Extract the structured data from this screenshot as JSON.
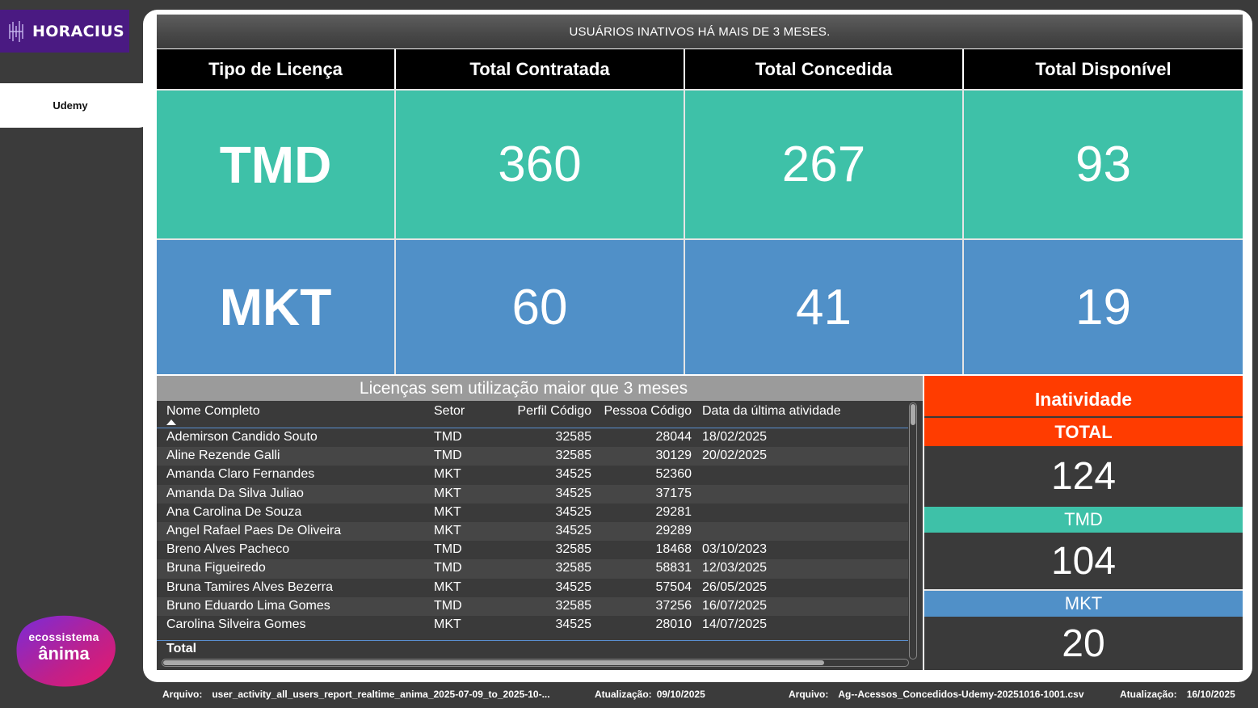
{
  "sidebar": {
    "brand": "HORACIUS",
    "nav_item": "Udemy",
    "footer_logo": {
      "line1": "ecossistema",
      "line2": "ânima"
    }
  },
  "header": {
    "title": "USUÁRIOS INATIVOS HÁ MAIS DE 3 MESES."
  },
  "licenses": {
    "columns": [
      "Tipo de Licença",
      "Total Contratada",
      "Total Concedida",
      "Total Disponível"
    ],
    "rows": [
      {
        "label": "TMD",
        "contratada": "360",
        "concedida": "267",
        "disponivel": "93",
        "color": "#3ec1a8"
      },
      {
        "label": "MKT",
        "contratada": "60",
        "concedida": "41",
        "disponivel": "19",
        "color": "#5090c8"
      }
    ]
  },
  "table": {
    "title": "Licenças sem utilização maior que 3 meses",
    "columns": [
      "Nome Completo",
      "Setor",
      "Perfil Código",
      "Pessoa Código",
      "Data da última atividade"
    ],
    "rows": [
      {
        "nome": "Ademirson Candido Souto",
        "setor": "TMD",
        "perfil": "32585",
        "pessoa": "28044",
        "data": "18/02/2025"
      },
      {
        "nome": "Aline Rezende Galli",
        "setor": "TMD",
        "perfil": "32585",
        "pessoa": "30129",
        "data": "20/02/2025"
      },
      {
        "nome": "Amanda Claro Fernandes",
        "setor": "MKT",
        "perfil": "34525",
        "pessoa": "52360",
        "data": ""
      },
      {
        "nome": "Amanda Da Silva Juliao",
        "setor": "MKT",
        "perfil": "34525",
        "pessoa": "37175",
        "data": ""
      },
      {
        "nome": "Ana Carolina De Souza",
        "setor": "MKT",
        "perfil": "34525",
        "pessoa": "29281",
        "data": ""
      },
      {
        "nome": "Angel Rafael Paes De Oliveira",
        "setor": "MKT",
        "perfil": "34525",
        "pessoa": "29289",
        "data": ""
      },
      {
        "nome": "Breno Alves Pacheco",
        "setor": "TMD",
        "perfil": "32585",
        "pessoa": "18468",
        "data": "03/10/2023"
      },
      {
        "nome": "Bruna Figueiredo",
        "setor": "TMD",
        "perfil": "32585",
        "pessoa": "58831",
        "data": "12/03/2025"
      },
      {
        "nome": "Bruna Tamires Alves Bezerra",
        "setor": "MKT",
        "perfil": "34525",
        "pessoa": "57504",
        "data": "26/05/2025"
      },
      {
        "nome": "Bruno Eduardo Lima Gomes",
        "setor": "TMD",
        "perfil": "32585",
        "pessoa": "37256",
        "data": "16/07/2025"
      },
      {
        "nome": "Carolina Silveira Gomes",
        "setor": "MKT",
        "perfil": "34525",
        "pessoa": "28010",
        "data": "14/07/2025"
      }
    ],
    "total_label": "Total"
  },
  "inatividade": {
    "title": "Inatividade",
    "total_label": "TOTAL",
    "total_value": "124",
    "tmd_label": "TMD",
    "tmd_value": "104",
    "mkt_label": "MKT",
    "mkt_value": "20",
    "title_color": "#ff3c00"
  },
  "footer": {
    "arquivo1_label": "Arquivo:",
    "arquivo1_value": "user_activity_all_users_report_realtime_anima_2025-07-09_to_2025-10-...",
    "atualizacao1_label": "Atualização:",
    "atualizacao1_value": "09/10/2025",
    "arquivo2_label": "Arquivo:",
    "arquivo2_value": "Ag--Acessos_Concedidos-Udemy-20251016-1001.csv",
    "atualizacao2_label": "Atualização:",
    "atualizacao2_value": "16/10/2025"
  }
}
